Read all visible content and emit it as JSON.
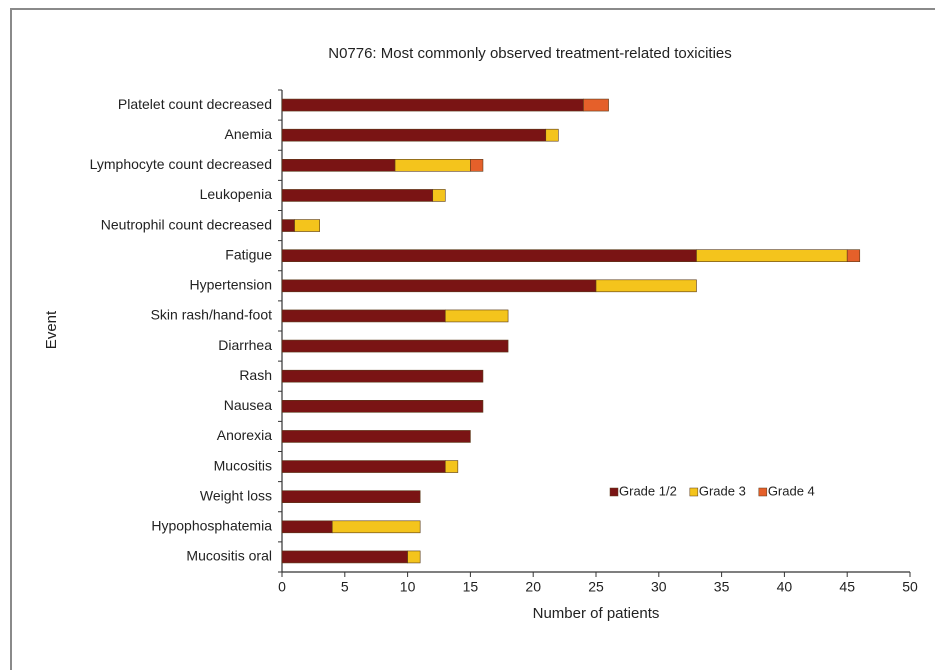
{
  "chart_data": {
    "type": "stacked_barh",
    "title": "N0776: Most commonly observed treatment-related toxicities",
    "x_label": "Number of patients",
    "y_label": "Event",
    "categories": [
      "Platelet count decreased",
      "Anemia",
      "Lymphocyte count decreased",
      "Leukopenia",
      "Neutrophil count decreased",
      "Fatigue",
      "Hypertension",
      "Skin rash/hand-foot",
      "Diarrhea",
      "Rash",
      "Nausea",
      "Anorexia",
      "Mucositis",
      "Weight loss",
      "Hypophosphatemia",
      "Mucositis oral"
    ],
    "series": [
      {
        "name": "Grade 1/2",
        "color": "#7a1414",
        "values": [
          24,
          21,
          9,
          12,
          1,
          33,
          25,
          13,
          18,
          16,
          16,
          15,
          13,
          11,
          4,
          10
        ]
      },
      {
        "name": "Grade 3",
        "color": "#f4c41c",
        "values": [
          0,
          1,
          6,
          1,
          2,
          12,
          8,
          5,
          0,
          0,
          0,
          0,
          1,
          0,
          7,
          1
        ]
      },
      {
        "name": "Grade 4",
        "color": "#e5602a",
        "values": [
          2,
          0,
          1,
          0,
          0,
          1,
          0,
          0,
          0,
          0,
          0,
          0,
          0,
          0,
          0,
          0
        ]
      }
    ],
    "xlim": [
      0,
      50
    ],
    "xticks": [
      0,
      5,
      10,
      15,
      20,
      25,
      30,
      35,
      40,
      45,
      50
    ],
    "legend": "lower right"
  }
}
